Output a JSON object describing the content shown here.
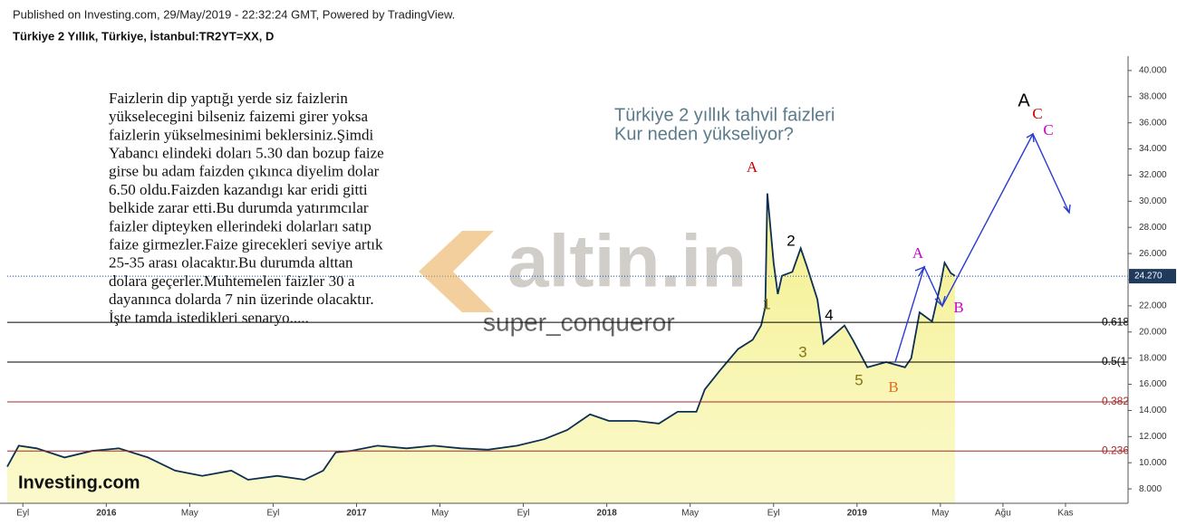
{
  "header": {
    "published": "Published on Investing.com, 29/May/2019 - 22:32:24 GMT, Powered by TradingView.",
    "symbol": "Türkiye 2 Yıllık, Türkiye, İstanbul:TR2YT=XX, D"
  },
  "chart_data": {
    "type": "area",
    "color": "#0d2f52",
    "fill": "#f3ef86",
    "x": [
      -0.75,
      -0.2,
      0.66,
      2.0,
      3.3,
      4.6,
      6.0,
      7.3,
      8.6,
      10.0,
      10.8,
      12.2,
      13.5,
      14.4,
      15.0,
      15.7,
      17.0,
      18.4,
      19.7,
      21.0,
      22.3,
      23.7,
      25.0,
      26.1,
      27.2,
      28.1,
      29.4,
      30.5,
      31.4,
      32.3,
      32.7,
      33.4,
      34.3,
      35.0,
      35.4,
      35.6,
      35.7,
      36.0,
      36.2,
      36.4,
      36.9,
      37.3,
      37.6,
      38.1,
      38.4,
      38.9,
      39.4,
      39.8,
      40.5,
      41.4,
      42.3,
      42.6,
      43.0,
      43.6,
      44.0,
      44.2,
      44.5,
      44.7
    ],
    "values": [
      9.7,
      11.3,
      11.1,
      10.4,
      10.9,
      11.1,
      10.4,
      9.4,
      9.0,
      9.4,
      8.7,
      9.0,
      8.7,
      9.4,
      10.8,
      10.9,
      11.3,
      11.1,
      11.3,
      11.1,
      11.0,
      11.3,
      11.8,
      12.5,
      13.7,
      13.2,
      13.2,
      13.0,
      13.9,
      13.9,
      15.6,
      17.0,
      18.7,
      19.4,
      20.5,
      21.9,
      30.6,
      25.3,
      22.9,
      24.3,
      24.6,
      26.4,
      25.0,
      22.5,
      19.1,
      19.8,
      20.5,
      19.4,
      17.3,
      17.7,
      17.3,
      18.0,
      21.5,
      20.8,
      23.6,
      25.3,
      24.5,
      24.3
    ],
    "xlim": [
      -0.75,
      53.0
    ],
    "xticks": [
      {
        "value": 0,
        "label": "Eyl"
      },
      {
        "value": 4,
        "label": "2016"
      },
      {
        "value": 8,
        "label": "May"
      },
      {
        "value": 12,
        "label": "Eyl"
      },
      {
        "value": 16,
        "label": "2017"
      },
      {
        "value": 20,
        "label": "May"
      },
      {
        "value": 24,
        "label": "Eyl"
      },
      {
        "value": 28,
        "label": "2018"
      },
      {
        "value": 32,
        "label": "May"
      },
      {
        "value": 36,
        "label": "Eyl"
      },
      {
        "value": 40,
        "label": "2019"
      },
      {
        "value": 44,
        "label": "May"
      },
      {
        "value": 47,
        "label": "Ağu"
      },
      {
        "value": 50,
        "label": "Kas"
      }
    ],
    "ylim": [
      6.9,
      41.1
    ],
    "yticks": [
      {
        "value": 8,
        "label": "8.000"
      },
      {
        "value": 10,
        "label": "10.000"
      },
      {
        "value": 12,
        "label": "12.000"
      },
      {
        "value": 14,
        "label": "14.000"
      },
      {
        "value": 16,
        "label": "16.000"
      },
      {
        "value": 18,
        "label": "18.000"
      },
      {
        "value": 20,
        "label": "20.000"
      },
      {
        "value": 22,
        "label": "22.000"
      },
      {
        "value": 24,
        "label": "24.000"
      },
      {
        "value": 26,
        "label": "26.000"
      },
      {
        "value": 28,
        "label": "28.000"
      },
      {
        "value": 30,
        "label": "30.000"
      },
      {
        "value": 32,
        "label": "32.000"
      },
      {
        "value": 34,
        "label": "34.000"
      },
      {
        "value": 36,
        "label": "36.000"
      },
      {
        "value": 38,
        "label": "38.000"
      },
      {
        "value": 40,
        "label": "40.000"
      }
    ],
    "last_value": {
      "value": 24.27,
      "label": "24.270"
    },
    "levels": [
      {
        "value": 20.74,
        "label": "0.618",
        "color": "#000000"
      },
      {
        "value": 17.7,
        "label": "0.5(1",
        "color": "#000000"
      },
      {
        "value": 14.65,
        "label": "0.382",
        "color": "#a52a2a"
      },
      {
        "value": 10.9,
        "label": "0.236",
        "color": "#a52a2a"
      }
    ],
    "note": [
      "Faizlerin dip yaptığı yerde siz faizlerin",
      "yükselecegini bilseniz faizemi girer yoksa",
      "faizlerin yükselmesinimi beklersiniz.Şimdi",
      "Yabancı elindeki doları 5.30 dan bozup faize",
      "girse bu adam faizden çıkınca diyelim dolar",
      "6.50 oldu.Faizden kazandıgı kar eridi gitti",
      "belkide zarar etti.Bu durumda yatırımcılar",
      "faizler dipteyken ellerindeki dolarları satıp",
      "faize girmezler.Faize girecekleri seviye artık",
      "25-35 arası olacaktır.Bu durumda alttan",
      "dolara geçerler.Muhtemelen faizler 30 a",
      "dayanınca dolarda 7 nin üzerinde olacaktır.",
      "İşte tamda istedikleri senaryo....."
    ],
    "question": [
      "Türkiye 2 yıllık tahvil faizleri",
      "Kur neden yükseliyor?"
    ],
    "wave_labels": [
      {
        "text": "A",
        "color": "#cc0000"
      },
      {
        "text": "1",
        "color": "#857515"
      },
      {
        "text": "2",
        "color": "#000000"
      },
      {
        "text": "3",
        "color": "#857515"
      },
      {
        "text": "4",
        "color": "#000000"
      },
      {
        "text": "5",
        "color": "#857515"
      },
      {
        "text": "B",
        "color": "#e07020"
      },
      {
        "text": "A",
        "color": "#cc00cc"
      },
      {
        "text": "B",
        "color": "#cc00cc"
      },
      {
        "text": "A",
        "color": "#000000"
      },
      {
        "text": "C",
        "color": "#cc0000"
      },
      {
        "text": "C",
        "color": "#cc00cc"
      }
    ],
    "watermark": "altin.in",
    "author": "super_conqueror",
    "logo": "Investing.com"
  }
}
